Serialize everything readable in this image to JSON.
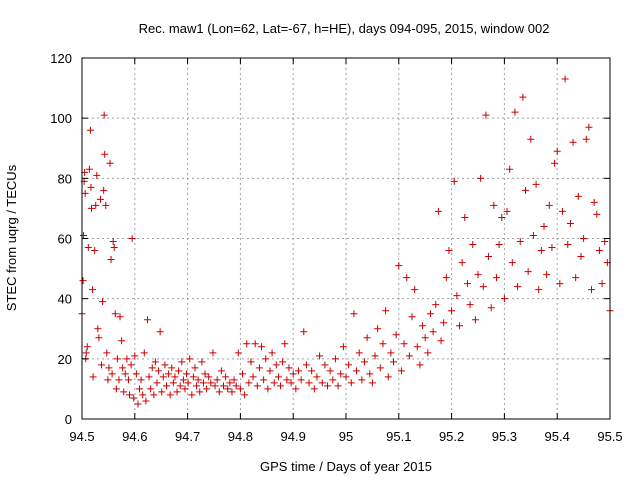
{
  "chart_data": {
    "type": "scatter",
    "title": "Rec. maw1 (Lon=62, Lat=-67, h=HE), days 094-095, 2015, window 002",
    "xlabel": "GPS time / Days of year 2015",
    "ylabel": "STEC from uqrg / TECUs",
    "xlim": [
      94.5,
      95.5
    ],
    "ylim": [
      0,
      120
    ],
    "xticks": [
      "94.5",
      "94.6",
      "94.7",
      "94.8",
      "94.9",
      "95",
      "95.1",
      "95.2",
      "95.3",
      "95.4",
      "95.5"
    ],
    "yticks": [
      "0",
      "20",
      "40",
      "60",
      "80",
      "100",
      "120"
    ],
    "grid": true,
    "marker": "+",
    "color": "#cc0000",
    "points": [
      [
        94.5,
        35
      ],
      [
        94.502,
        46
      ],
      [
        94.503,
        61
      ],
      [
        94.504,
        79
      ],
      [
        94.505,
        82
      ],
      [
        94.506,
        75
      ],
      [
        94.507,
        20
      ],
      [
        94.508,
        22
      ],
      [
        94.51,
        24
      ],
      [
        94.512,
        57
      ],
      [
        94.514,
        83
      ],
      [
        94.516,
        96
      ],
      [
        94.517,
        77
      ],
      [
        94.518,
        70
      ],
      [
        94.52,
        43
      ],
      [
        94.521,
        14
      ],
      [
        94.524,
        56
      ],
      [
        94.526,
        71
      ],
      [
        94.528,
        81
      ],
      [
        94.53,
        30
      ],
      [
        94.532,
        27
      ],
      [
        94.535,
        73
      ],
      [
        94.537,
        18
      ],
      [
        94.539,
        39
      ],
      [
        94.541,
        76
      ],
      [
        94.542,
        101
      ],
      [
        94.543,
        88
      ],
      [
        94.545,
        71
      ],
      [
        94.547,
        22
      ],
      [
        94.549,
        13
      ],
      [
        94.551,
        17
      ],
      [
        94.553,
        85
      ],
      [
        94.555,
        53
      ],
      [
        94.557,
        15
      ],
      [
        94.559,
        59
      ],
      [
        94.561,
        57
      ],
      [
        94.563,
        35
      ],
      [
        94.565,
        10
      ],
      [
        94.567,
        20
      ],
      [
        94.57,
        13
      ],
      [
        94.572,
        34
      ],
      [
        94.575,
        26
      ],
      [
        94.577,
        17
      ],
      [
        94.579,
        9
      ],
      [
        94.582,
        15
      ],
      [
        94.585,
        20
      ],
      [
        94.588,
        13
      ],
      [
        94.59,
        8
      ],
      [
        94.593,
        18
      ],
      [
        94.595,
        60
      ],
      [
        94.598,
        7
      ],
      [
        94.6,
        21
      ],
      [
        94.603,
        15
      ],
      [
        94.606,
        5
      ],
      [
        94.609,
        10
      ],
      [
        94.612,
        13
      ],
      [
        94.615,
        8
      ],
      [
        94.618,
        22
      ],
      [
        94.621,
        6
      ],
      [
        94.624,
        33
      ],
      [
        94.627,
        14
      ],
      [
        94.63,
        10
      ],
      [
        94.633,
        17
      ],
      [
        94.636,
        8
      ],
      [
        94.639,
        19
      ],
      [
        94.642,
        12
      ],
      [
        94.645,
        16
      ],
      [
        94.648,
        29
      ],
      [
        94.651,
        9
      ],
      [
        94.654,
        14
      ],
      [
        94.657,
        18
      ],
      [
        94.66,
        11
      ],
      [
        94.664,
        15
      ],
      [
        94.667,
        8
      ],
      [
        94.67,
        17
      ],
      [
        94.673,
        12
      ],
      [
        94.676,
        14
      ],
      [
        94.68,
        9
      ],
      [
        94.683,
        16
      ],
      [
        94.686,
        11
      ],
      [
        94.689,
        19
      ],
      [
        94.692,
        13
      ],
      [
        94.695,
        10
      ],
      [
        94.698,
        15
      ],
      [
        94.701,
        12
      ],
      [
        94.704,
        20
      ],
      [
        94.708,
        8
      ],
      [
        94.711,
        14
      ],
      [
        94.714,
        17
      ],
      [
        94.717,
        11
      ],
      [
        94.72,
        13
      ],
      [
        94.723,
        9
      ],
      [
        94.727,
        19
      ],
      [
        94.73,
        12
      ],
      [
        94.733,
        15
      ],
      [
        94.736,
        10
      ],
      [
        94.74,
        14
      ],
      [
        94.744,
        12
      ],
      [
        94.748,
        22
      ],
      [
        94.752,
        11
      ],
      [
        94.756,
        13
      ],
      [
        94.76,
        9
      ],
      [
        94.764,
        16
      ],
      [
        94.768,
        11
      ],
      [
        94.772,
        14
      ],
      [
        94.776,
        10
      ],
      [
        94.78,
        12
      ],
      [
        94.784,
        9
      ],
      [
        94.788,
        13
      ],
      [
        94.792,
        11
      ],
      [
        94.796,
        22
      ],
      [
        94.8,
        10
      ],
      [
        94.804,
        15
      ],
      [
        94.808,
        8
      ],
      [
        94.812,
        25
      ],
      [
        94.816,
        12
      ],
      [
        94.82,
        19
      ],
      [
        94.824,
        14
      ],
      [
        94.828,
        25
      ],
      [
        94.832,
        11
      ],
      [
        94.836,
        17
      ],
      [
        94.84,
        24
      ],
      [
        94.844,
        13
      ],
      [
        94.848,
        20
      ],
      [
        94.852,
        10
      ],
      [
        94.856,
        16
      ],
      [
        94.86,
        22
      ],
      [
        94.864,
        12
      ],
      [
        94.868,
        18
      ],
      [
        94.872,
        14
      ],
      [
        94.876,
        11
      ],
      [
        94.88,
        19
      ],
      [
        94.884,
        25
      ],
      [
        94.888,
        13
      ],
      [
        94.892,
        17
      ],
      [
        94.896,
        12
      ],
      [
        94.9,
        15
      ],
      [
        94.905,
        10
      ],
      [
        94.91,
        16
      ],
      [
        94.915,
        13
      ],
      [
        94.92,
        29
      ],
      [
        94.925,
        18
      ],
      [
        94.93,
        12
      ],
      [
        94.935,
        16
      ],
      [
        94.94,
        10
      ],
      [
        94.945,
        14
      ],
      [
        94.95,
        21
      ],
      [
        94.955,
        12
      ],
      [
        94.96,
        18
      ],
      [
        94.965,
        11
      ],
      [
        94.97,
        16
      ],
      [
        94.975,
        13
      ],
      [
        94.98,
        20
      ],
      [
        94.985,
        11
      ],
      [
        94.99,
        15
      ],
      [
        94.995,
        24
      ],
      [
        95.0,
        14
      ],
      [
        95.005,
        18
      ],
      [
        95.01,
        12
      ],
      [
        95.015,
        35
      ],
      [
        95.02,
        16
      ],
      [
        95.025,
        22
      ],
      [
        95.03,
        13
      ],
      [
        95.035,
        19
      ],
      [
        95.04,
        27
      ],
      [
        95.045,
        15
      ],
      [
        95.05,
        12
      ],
      [
        95.055,
        21
      ],
      [
        95.06,
        30
      ],
      [
        95.065,
        17
      ],
      [
        95.07,
        25
      ],
      [
        95.075,
        36
      ],
      [
        95.08,
        14
      ],
      [
        95.085,
        22
      ],
      [
        95.09,
        19
      ],
      [
        95.095,
        28
      ],
      [
        95.1,
        51
      ],
      [
        95.105,
        16
      ],
      [
        95.11,
        25
      ],
      [
        95.115,
        47
      ],
      [
        95.12,
        21
      ],
      [
        95.125,
        34
      ],
      [
        95.13,
        43
      ],
      [
        95.135,
        24
      ],
      [
        95.14,
        18
      ],
      [
        95.145,
        31
      ],
      [
        95.15,
        27
      ],
      [
        95.155,
        22
      ],
      [
        95.16,
        35
      ],
      [
        95.165,
        29
      ],
      [
        95.17,
        38
      ],
      [
        95.175,
        69
      ],
      [
        95.18,
        26
      ],
      [
        95.185,
        32
      ],
      [
        95.19,
        47
      ],
      [
        95.195,
        56
      ],
      [
        95.2,
        36
      ],
      [
        95.205,
        79
      ],
      [
        95.21,
        41
      ],
      [
        95.215,
        31
      ],
      [
        95.22,
        52
      ],
      [
        95.225,
        67
      ],
      [
        95.23,
        45
      ],
      [
        95.235,
        38
      ],
      [
        95.24,
        58
      ],
      [
        95.245,
        33
      ],
      [
        95.25,
        48
      ],
      [
        95.255,
        80
      ],
      [
        95.26,
        44
      ],
      [
        95.265,
        101
      ],
      [
        95.27,
        54
      ],
      [
        95.275,
        37
      ],
      [
        95.28,
        71
      ],
      [
        95.285,
        47
      ],
      [
        95.29,
        58
      ],
      [
        95.295,
        67
      ],
      [
        95.3,
        40
      ],
      [
        95.305,
        69
      ],
      [
        95.31,
        83
      ],
      [
        95.315,
        52
      ],
      [
        95.32,
        102
      ],
      [
        95.325,
        44
      ],
      [
        95.33,
        59
      ],
      [
        95.335,
        107
      ],
      [
        95.34,
        76
      ],
      [
        95.345,
        49
      ],
      [
        95.35,
        93
      ],
      [
        95.355,
        61
      ],
      [
        95.36,
        78
      ],
      [
        95.365,
        43
      ],
      [
        95.37,
        56
      ],
      [
        95.375,
        64
      ],
      [
        95.38,
        48
      ],
      [
        95.385,
        71
      ],
      [
        95.39,
        57
      ],
      [
        95.395,
        85
      ],
      [
        95.4,
        89
      ],
      [
        95.405,
        45
      ],
      [
        95.41,
        69
      ],
      [
        95.415,
        113
      ],
      [
        95.42,
        58
      ],
      [
        95.425,
        65
      ],
      [
        95.43,
        92
      ],
      [
        95.435,
        47
      ],
      [
        95.44,
        74
      ],
      [
        95.445,
        54
      ],
      [
        95.45,
        60
      ],
      [
        95.455,
        93
      ],
      [
        95.46,
        97
      ],
      [
        95.465,
        43
      ],
      [
        95.47,
        72
      ],
      [
        95.475,
        68
      ],
      [
        95.48,
        56
      ],
      [
        95.485,
        45
      ],
      [
        95.49,
        59
      ],
      [
        95.495,
        52
      ],
      [
        95.5,
        36
      ]
    ]
  }
}
